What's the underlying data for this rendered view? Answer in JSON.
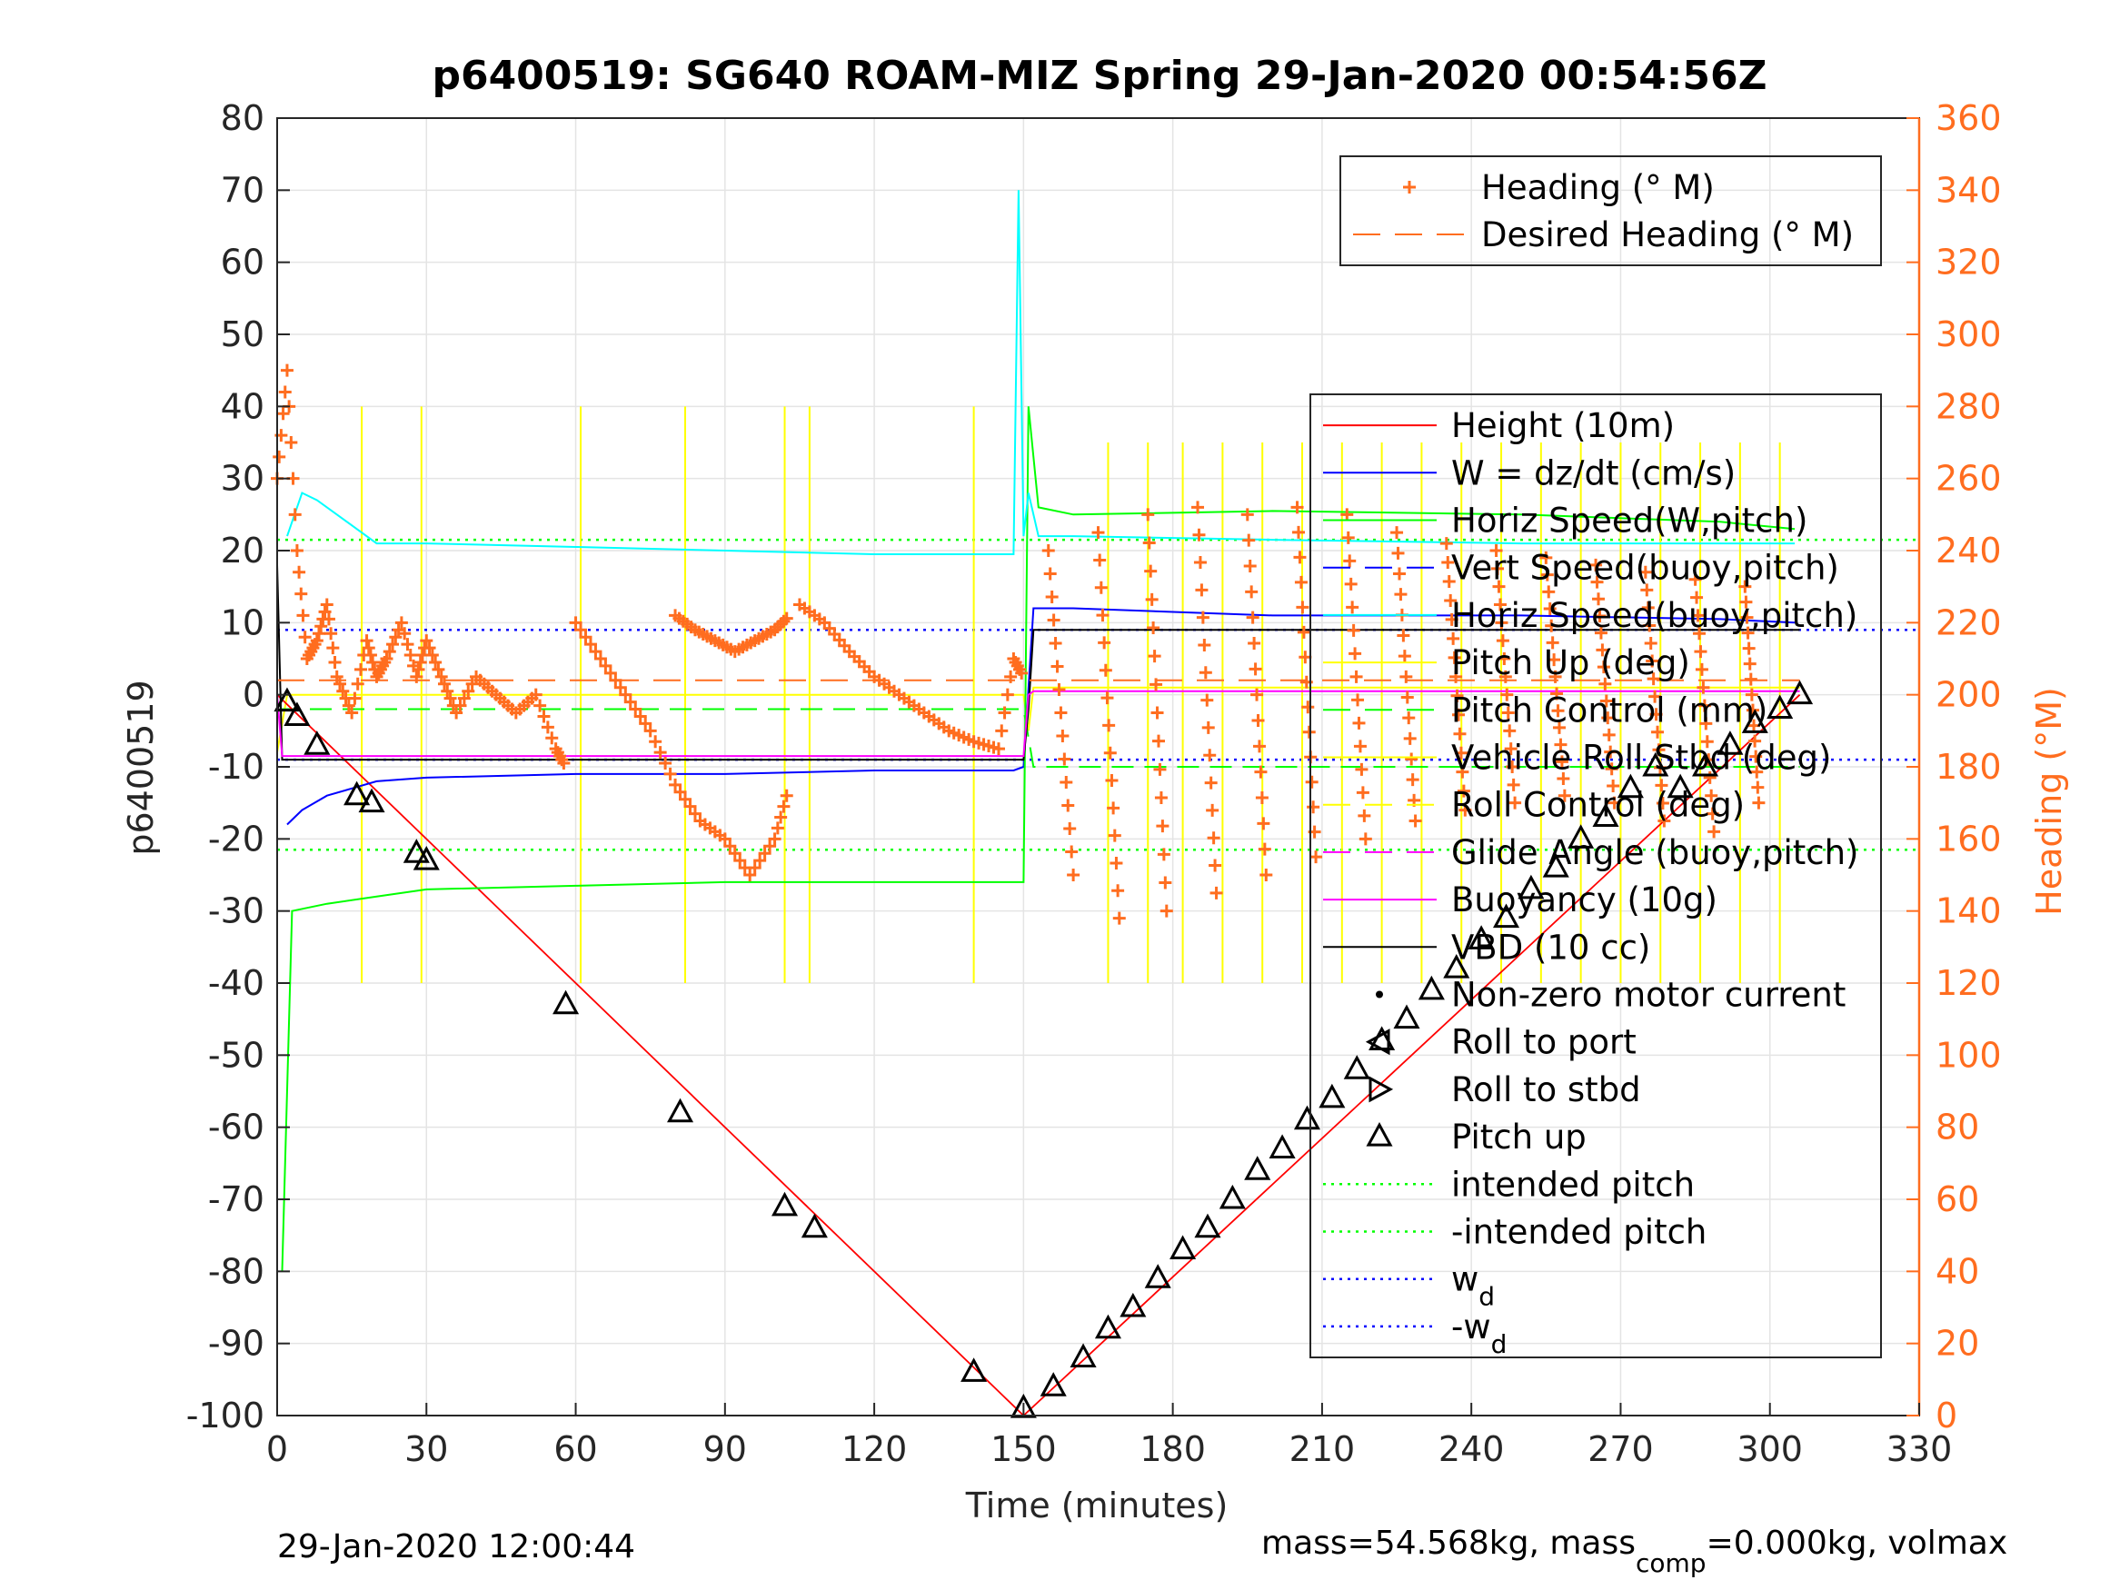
{
  "chart_data": {
    "type": "line",
    "title": "p6400519: SG640 ROAM-MIZ Spring 29-Jan-2020 00:54:56Z",
    "xlabel": "Time (minutes)",
    "ylabel": "p6400519",
    "y2label": "Heading (°M)",
    "xlim": [
      0,
      330
    ],
    "ylim": [
      -100,
      80
    ],
    "y2lim": [
      0,
      360
    ],
    "xticks": [
      0,
      30,
      60,
      90,
      120,
      150,
      180,
      210,
      240,
      270,
      300,
      330
    ],
    "yticks": [
      -100,
      -90,
      -80,
      -70,
      -60,
      -50,
      -40,
      -30,
      -20,
      -10,
      0,
      10,
      20,
      30,
      40,
      50,
      60,
      70,
      80
    ],
    "y2ticks": [
      0,
      20,
      40,
      60,
      80,
      100,
      120,
      140,
      160,
      180,
      200,
      220,
      240,
      260,
      280,
      300,
      320,
      340,
      360
    ],
    "grid": true,
    "colors": {
      "axis_right": "#ff6d1f",
      "heading": "#ff6d1f",
      "height": "#ff0000",
      "w": "#0000ff",
      "horiz_speed": "#00ff00",
      "vert_speed_buoy": "#00ffff",
      "pitch": "#ffff00",
      "buoyancy": "#ff00ff",
      "vbd": "#000000"
    },
    "footer_left": "29-Jan-2020 12:00:44",
    "footer_right": {
      "pre": "mass=54.568kg, mass",
      "sub": "comp",
      "post": "=0.000kg, volmax"
    },
    "legend_top": {
      "placement": "top-right",
      "items": [
        {
          "label": "Heading (° M)",
          "style": "plus",
          "color": "#ff6d1f"
        },
        {
          "label": "Desired Heading (° M)",
          "style": "dash",
          "color": "#ff6d1f"
        }
      ]
    },
    "legend_main": {
      "placement": "right",
      "items": [
        {
          "label": "Height (10m)",
          "style": "line",
          "color": "#ff0000"
        },
        {
          "label": "W = dz/dt (cm/s)",
          "style": "line",
          "color": "#0000ff"
        },
        {
          "label": "Horiz Speed(W,pitch)",
          "style": "line",
          "color": "#00ff00"
        },
        {
          "label": "Vert Speed(buoy,pitch)",
          "style": "dash",
          "color": "#0000ff"
        },
        {
          "label": "Horiz Speed(buoy,pitch)",
          "style": "line",
          "color": "#00ffff"
        },
        {
          "label": "Pitch Up (deg)",
          "style": "line",
          "color": "#ffff00"
        },
        {
          "label": "Pitch Control (mm)",
          "style": "dash",
          "color": "#00ff00"
        },
        {
          "label": "Vehicle Roll Stbd (deg)",
          "style": "line",
          "color": "#ffff00"
        },
        {
          "label": "Roll Control (deg)",
          "style": "dash",
          "color": "#ffff00"
        },
        {
          "label": "Glide Angle (buoy,pitch)",
          "style": "dash",
          "color": "#ff00ff"
        },
        {
          "label": "Buoyancy (10g)",
          "style": "line",
          "color": "#ff00ff"
        },
        {
          "label": "VBD (10 cc)",
          "style": "line",
          "color": "#000000"
        },
        {
          "label": "Non-zero motor current",
          "style": "dot",
          "color": "#000000"
        },
        {
          "label": "Roll to port",
          "style": "tri-left",
          "color": "#000000"
        },
        {
          "label": "Roll to stbd",
          "style": "tri-right",
          "color": "#000000"
        },
        {
          "label": "Pitch up",
          "style": "tri-up",
          "color": "#000000"
        },
        {
          "label": "intended pitch",
          "style": "dot-line",
          "color": "#00ff00"
        },
        {
          "label": "-intended pitch",
          "style": "dot-line",
          "color": "#00ff00"
        },
        {
          "label": "w",
          "sub": "d",
          "style": "dot-line",
          "color": "#0000ff"
        },
        {
          "label": "-w",
          "sub": "d",
          "style": "dot-line",
          "color": "#0000ff"
        }
      ]
    },
    "reference_lines": [
      {
        "name": "intended pitch",
        "y": 21.5,
        "color": "#00ff00"
      },
      {
        "name": "-intended pitch",
        "y": -21.5,
        "color": "#00ff00"
      },
      {
        "name": "w_d",
        "y": 9,
        "color": "#0000ff"
      },
      {
        "name": "-w_d",
        "y": -9,
        "color": "#0000ff"
      }
    ],
    "series": [
      {
        "name": "Height (10m)",
        "color": "#ff0000",
        "x": [
          0,
          150,
          306
        ],
        "y": [
          0,
          -100,
          0
        ]
      },
      {
        "name": "W = dz/dt (cm/s)",
        "color": "#0000ff",
        "x": [
          2,
          5,
          10,
          15,
          20,
          30,
          60,
          90,
          120,
          148,
          150,
          152,
          160,
          200,
          250,
          290,
          305
        ],
        "y": [
          -18,
          -16,
          -14,
          -13,
          -12,
          -11.5,
          -11,
          -11,
          -10.5,
          -10.5,
          -10,
          12,
          12,
          11,
          11,
          10.5,
          10
        ]
      },
      {
        "name": "Horiz Speed(W,pitch)",
        "color": "#00ff00",
        "x": [
          1,
          3,
          10,
          20,
          30,
          60,
          90,
          120,
          148,
          150,
          151,
          153,
          160,
          200,
          250,
          290,
          305
        ],
        "y": [
          -80,
          -30,
          -29,
          -28,
          -27,
          -26.5,
          -26,
          -26,
          -26,
          -26,
          40,
          26,
          25,
          25.5,
          25,
          24,
          23
        ]
      },
      {
        "name": "Horiz Speed(buoy,pitch)",
        "color": "#00ffff",
        "x": [
          2,
          5,
          8,
          12,
          20,
          30,
          60,
          90,
          120,
          140,
          148,
          149,
          150,
          151,
          153,
          160,
          200,
          250,
          290,
          305
        ],
        "y": [
          22,
          28,
          27,
          25,
          21,
          21,
          20.5,
          20,
          19.5,
          19.5,
          19.5,
          70,
          22,
          28,
          22,
          22,
          21.5,
          21,
          21,
          21
        ]
      },
      {
        "name": "VBD (10 cc)",
        "color": "#000000",
        "x": [
          0,
          1,
          10,
          150,
          151,
          152,
          306
        ],
        "y": [
          18,
          -9,
          -9,
          -9,
          -2,
          9,
          9
        ]
      },
      {
        "name": "Buoyancy (10g)",
        "color": "#ff00ff",
        "x": [
          0,
          1,
          10,
          150,
          151,
          152,
          306
        ],
        "y": [
          0,
          -8.5,
          -8.5,
          -8.5,
          0,
          0.5,
          0.5
        ]
      },
      {
        "name": "Desired Heading (° M)",
        "color": "#ff6d1f",
        "axis": "right",
        "x": [
          0,
          306
        ],
        "y": [
          204,
          204
        ]
      }
    ],
    "heading_segments": [
      {
        "x": [
          0,
          2,
          4,
          6,
          8,
          10,
          12,
          15,
          18,
          20,
          22,
          25,
          28,
          30,
          33,
          36,
          40,
          44,
          48,
          52,
          56,
          58
        ],
        "y": [
          260,
          290,
          240,
          210,
          215,
          225,
          205,
          195,
          215,
          205,
          210,
          220,
          205,
          215,
          205,
          195,
          205,
          200,
          195,
          200,
          185,
          180
        ]
      },
      {
        "x": [
          60,
          65,
          70,
          75,
          80,
          85,
          90,
          95,
          100,
          103
        ],
        "y": [
          220,
          210,
          200,
          190,
          175,
          165,
          160,
          150,
          160,
          175
        ]
      },
      {
        "x": [
          80,
          84,
          88,
          92,
          96,
          100,
          103
        ],
        "y": [
          222,
          218,
          215,
          212,
          215,
          218,
          222
        ]
      },
      {
        "x": [
          105,
          110,
          115,
          120,
          125,
          130,
          135,
          140,
          145,
          148,
          150
        ],
        "y": [
          225,
          220,
          212,
          205,
          200,
          195,
          190,
          187,
          185,
          210,
          205
        ]
      }
    ],
    "heading_fans": [
      {
        "x": [
          155,
          175
        ],
        "y": [
          240,
          150
        ]
      },
      {
        "x": [
          165,
          182
        ],
        "y": [
          245,
          138
        ]
      },
      {
        "x": [
          175,
          190
        ],
        "y": [
          250,
          140
        ]
      },
      {
        "x": [
          185,
          200
        ],
        "y": [
          252,
          145
        ]
      },
      {
        "x": [
          195,
          210
        ],
        "y": [
          250,
          150
        ]
      },
      {
        "x": [
          205,
          220
        ],
        "y": [
          252,
          155
        ]
      },
      {
        "x": [
          215,
          230
        ],
        "y": [
          250,
          160
        ]
      },
      {
        "x": [
          225,
          240
        ],
        "y": [
          245,
          165
        ]
      },
      {
        "x": [
          235,
          250
        ],
        "y": [
          242,
          168
        ]
      },
      {
        "x": [
          245,
          260
        ],
        "y": [
          240,
          170
        ]
      },
      {
        "x": [
          255,
          270
        ],
        "y": [
          238,
          172
        ]
      },
      {
        "x": [
          265,
          280
        ],
        "y": [
          236,
          170
        ]
      },
      {
        "x": [
          275,
          290
        ],
        "y": [
          234,
          165
        ]
      },
      {
        "x": [
          285,
          300
        ],
        "y": [
          232,
          162
        ]
      },
      {
        "x": [
          295,
          306
        ],
        "y": [
          230,
          170
        ]
      }
    ],
    "yellow_spikes": [
      17,
      29,
      61,
      82,
      102,
      107,
      140,
      167,
      175,
      182,
      190,
      198,
      206,
      214,
      222,
      230,
      238,
      246,
      254,
      262,
      270,
      278,
      286,
      294,
      302
    ],
    "markers": {
      "pitch_up": [
        {
          "x": 2,
          "y": -1
        },
        {
          "x": 4,
          "y": -3
        },
        {
          "x": 8,
          "y": -7
        },
        {
          "x": 16,
          "y": -14
        },
        {
          "x": 19,
          "y": -15
        },
        {
          "x": 28,
          "y": -22
        },
        {
          "x": 30,
          "y": -23
        },
        {
          "x": 58,
          "y": -43
        },
        {
          "x": 81,
          "y": -58
        },
        {
          "x": 102,
          "y": -71
        },
        {
          "x": 108,
          "y": -74
        },
        {
          "x": 140,
          "y": -94
        },
        {
          "x": 150,
          "y": -99
        },
        {
          "x": 156,
          "y": -96
        },
        {
          "x": 162,
          "y": -92
        },
        {
          "x": 167,
          "y": -88
        },
        {
          "x": 172,
          "y": -85
        },
        {
          "x": 177,
          "y": -81
        },
        {
          "x": 182,
          "y": -77
        },
        {
          "x": 187,
          "y": -74
        },
        {
          "x": 192,
          "y": -70
        },
        {
          "x": 197,
          "y": -66
        },
        {
          "x": 202,
          "y": -63
        },
        {
          "x": 207,
          "y": -59
        },
        {
          "x": 212,
          "y": -56
        },
        {
          "x": 217,
          "y": -52
        },
        {
          "x": 222,
          "y": -48
        },
        {
          "x": 227,
          "y": -45
        },
        {
          "x": 232,
          "y": -41
        },
        {
          "x": 237,
          "y": -38
        },
        {
          "x": 242,
          "y": -34
        },
        {
          "x": 247,
          "y": -31
        },
        {
          "x": 252,
          "y": -27
        },
        {
          "x": 257,
          "y": -24
        },
        {
          "x": 262,
          "y": -20
        },
        {
          "x": 267,
          "y": -17
        },
        {
          "x": 272,
          "y": -13
        },
        {
          "x": 277,
          "y": -10
        },
        {
          "x": 282,
          "y": -13
        },
        {
          "x": 287,
          "y": -10
        },
        {
          "x": 292,
          "y": -7
        },
        {
          "x": 297,
          "y": -4
        },
        {
          "x": 302,
          "y": -2
        },
        {
          "x": 306,
          "y": 0
        }
      ]
    }
  }
}
